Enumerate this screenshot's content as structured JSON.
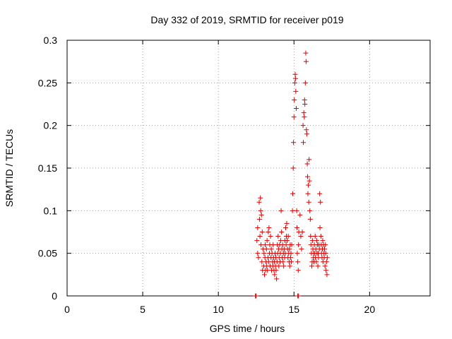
{
  "chart_data": {
    "type": "scatter",
    "title": "Day 332 of 2019, SRMTID for receiver p019",
    "xlabel": "GPS time / hours",
    "ylabel": "SRMTID / TECUs",
    "xlim": [
      0,
      24
    ],
    "ylim": [
      0,
      0.3
    ],
    "xticks": [
      0,
      5,
      10,
      15,
      20
    ],
    "yticks": [
      0,
      0.05,
      0.1,
      0.15,
      0.2,
      0.25,
      0.3
    ],
    "xtick_labels": [
      "0",
      "5",
      "10",
      "15",
      "20"
    ],
    "ytick_labels": [
      "0",
      "0.05",
      "0.1",
      "0.15",
      "0.2",
      "0.25",
      "0.3"
    ],
    "grid": true,
    "marker": "+",
    "color": "#dd0000",
    "series": [
      {
        "name": "p019",
        "points": [
          [
            12.45,
            0.0
          ],
          [
            12.5,
            0.0
          ],
          [
            15.25,
            0.0
          ],
          [
            15.3,
            0.0
          ],
          [
            12.55,
            0.065
          ],
          [
            12.6,
            0.08
          ],
          [
            12.6,
            0.05
          ],
          [
            12.65,
            0.045
          ],
          [
            12.7,
            0.11
          ],
          [
            12.72,
            0.09
          ],
          [
            12.75,
            0.07
          ],
          [
            12.78,
            0.115
          ],
          [
            12.8,
            0.1
          ],
          [
            12.82,
            0.06
          ],
          [
            12.85,
            0.095
          ],
          [
            12.88,
            0.04
          ],
          [
            12.9,
            0.075
          ],
          [
            12.92,
            0.03
          ],
          [
            12.95,
            0.055
          ],
          [
            13.0,
            0.035
          ],
          [
            13.02,
            0.05
          ],
          [
            13.05,
            0.025
          ],
          [
            13.08,
            0.045
          ],
          [
            13.1,
            0.06
          ],
          [
            13.12,
            0.03
          ],
          [
            13.15,
            0.04
          ],
          [
            13.18,
            0.055
          ],
          [
            13.2,
            0.035
          ],
          [
            13.22,
            0.065
          ],
          [
            13.25,
            0.03
          ],
          [
            13.28,
            0.045
          ],
          [
            13.3,
            0.075
          ],
          [
            13.32,
            0.04
          ],
          [
            13.35,
            0.08
          ],
          [
            13.38,
            0.05
          ],
          [
            13.4,
            0.06
          ],
          [
            13.42,
            0.035
          ],
          [
            13.45,
            0.07
          ],
          [
            13.48,
            0.045
          ],
          [
            13.5,
            0.055
          ],
          [
            13.52,
            0.03
          ],
          [
            13.55,
            0.05
          ],
          [
            13.58,
            0.04
          ],
          [
            13.6,
            0.035
          ],
          [
            13.62,
            0.06
          ],
          [
            13.65,
            0.045
          ],
          [
            13.68,
            0.03
          ],
          [
            13.7,
            0.04
          ],
          [
            13.72,
            0.025
          ],
          [
            13.75,
            0.05
          ],
          [
            13.78,
            0.035
          ],
          [
            13.8,
            0.045
          ],
          [
            13.82,
            0.03
          ],
          [
            13.85,
            0.02
          ],
          [
            13.88,
            0.04
          ],
          [
            13.9,
            0.06
          ],
          [
            13.92,
            0.05
          ],
          [
            13.95,
            0.07
          ],
          [
            13.98,
            0.055
          ],
          [
            14.0,
            0.035
          ],
          [
            14.02,
            0.045
          ],
          [
            14.05,
            0.06
          ],
          [
            14.08,
            0.04
          ],
          [
            14.1,
            0.05
          ],
          [
            14.12,
            0.065
          ],
          [
            14.15,
            0.1
          ],
          [
            14.18,
            0.075
          ],
          [
            14.2,
            0.055
          ],
          [
            14.22,
            0.045
          ],
          [
            14.25,
            0.06
          ],
          [
            14.28,
            0.04
          ],
          [
            14.3,
            0.05
          ],
          [
            14.32,
            0.035
          ],
          [
            14.35,
            0.055
          ],
          [
            14.38,
            0.045
          ],
          [
            14.4,
            0.065
          ],
          [
            14.42,
            0.05
          ],
          [
            14.45,
            0.08
          ],
          [
            14.48,
            0.06
          ],
          [
            14.5,
            0.07
          ],
          [
            14.52,
            0.085
          ],
          [
            14.55,
            0.065
          ],
          [
            14.58,
            0.055
          ],
          [
            14.6,
            0.045
          ],
          [
            14.62,
            0.07
          ],
          [
            14.65,
            0.05
          ],
          [
            14.68,
            0.04
          ],
          [
            14.7,
            0.055
          ],
          [
            14.72,
            0.035
          ],
          [
            14.75,
            0.06
          ],
          [
            14.78,
            0.045
          ],
          [
            14.8,
            0.05
          ],
          [
            14.82,
            0.04
          ],
          [
            14.85,
            0.06
          ],
          [
            14.9,
            0.1
          ],
          [
            14.92,
            0.12
          ],
          [
            14.95,
            0.15
          ],
          [
            14.97,
            0.18
          ],
          [
            15.0,
            0.21
          ],
          [
            15.02,
            0.23
          ],
          [
            15.05,
            0.25
          ],
          [
            15.08,
            0.26
          ],
          [
            15.1,
            0.255
          ],
          [
            15.12,
            0.24
          ],
          [
            15.15,
            0.22
          ],
          [
            15.18,
            0.1
          ],
          [
            15.2,
            0.08
          ],
          [
            15.22,
            0.05
          ],
          [
            15.25,
            0.04
          ],
          [
            15.28,
            0.03
          ],
          [
            15.3,
            0.06
          ],
          [
            15.32,
            0.075
          ],
          [
            15.4,
            0.095
          ],
          [
            15.45,
            0.07
          ],
          [
            15.5,
            0.055
          ],
          [
            15.55,
            0.075
          ],
          [
            15.6,
            0.2
          ],
          [
            15.62,
            0.18
          ],
          [
            15.65,
            0.215
          ],
          [
            15.68,
            0.21
          ],
          [
            15.7,
            0.23
          ],
          [
            15.72,
            0.225
          ],
          [
            15.75,
            0.25
          ],
          [
            15.78,
            0.285
          ],
          [
            15.8,
            0.275
          ],
          [
            15.82,
            0.195
          ],
          [
            15.85,
            0.19
          ],
          [
            15.88,
            0.155
          ],
          [
            15.9,
            0.14
          ],
          [
            15.92,
            0.12
          ],
          [
            15.95,
            0.13
          ],
          [
            15.98,
            0.11
          ],
          [
            16.0,
            0.16
          ],
          [
            16.02,
            0.135
          ],
          [
            16.05,
            0.1
          ],
          [
            16.08,
            0.09
          ],
          [
            16.1,
            0.07
          ],
          [
            16.12,
            0.06
          ],
          [
            16.15,
            0.05
          ],
          [
            16.18,
            0.035
          ],
          [
            16.2,
            0.04
          ],
          [
            16.22,
            0.065
          ],
          [
            16.25,
            0.055
          ],
          [
            16.28,
            0.045
          ],
          [
            16.3,
            0.05
          ],
          [
            16.32,
            0.04
          ],
          [
            16.35,
            0.06
          ],
          [
            16.38,
            0.05
          ],
          [
            16.4,
            0.07
          ],
          [
            16.42,
            0.045
          ],
          [
            16.45,
            0.055
          ],
          [
            16.48,
            0.04
          ],
          [
            16.5,
            0.065
          ],
          [
            16.52,
            0.05
          ],
          [
            16.55,
            0.06
          ],
          [
            16.58,
            0.035
          ],
          [
            16.6,
            0.05
          ],
          [
            16.62,
            0.045
          ],
          [
            16.65,
            0.06
          ],
          [
            16.68,
            0.055
          ],
          [
            16.7,
            0.12
          ],
          [
            16.72,
            0.08
          ],
          [
            16.75,
            0.11
          ],
          [
            16.78,
            0.07
          ],
          [
            16.8,
            0.06
          ],
          [
            16.82,
            0.05
          ],
          [
            16.85,
            0.045
          ],
          [
            16.88,
            0.055
          ],
          [
            16.9,
            0.065
          ],
          [
            16.92,
            0.04
          ],
          [
            16.95,
            0.06
          ],
          [
            16.98,
            0.05
          ],
          [
            17.0,
            0.045
          ],
          [
            17.02,
            0.055
          ],
          [
            17.05,
            0.035
          ],
          [
            17.08,
            0.06
          ],
          [
            17.1,
            0.05
          ],
          [
            17.12,
            0.03
          ],
          [
            17.15,
            0.04
          ],
          [
            17.18,
            0.025
          ],
          [
            17.2,
            0.045
          ]
        ]
      }
    ]
  }
}
